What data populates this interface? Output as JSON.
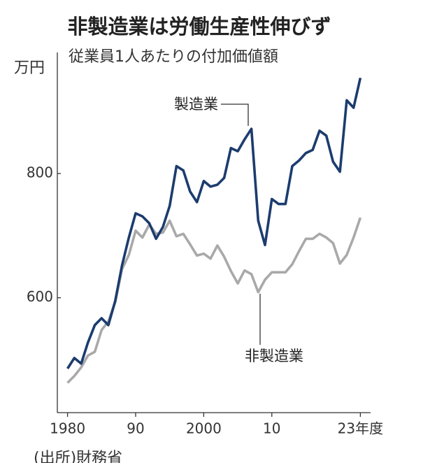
{
  "chart_data": {
    "type": "line",
    "title": "非製造業は労働生産性伸びず",
    "subtitle": "従業員1人あたりの付加価値額",
    "y_label": "万円",
    "source": "(出所)財務省",
    "x": [
      1980,
      1981,
      1982,
      1983,
      1984,
      1985,
      1986,
      1987,
      1988,
      1989,
      1990,
      1991,
      1992,
      1993,
      1994,
      1995,
      1996,
      1997,
      1998,
      1999,
      2000,
      2001,
      2002,
      2003,
      2004,
      2005,
      2006,
      2007,
      2008,
      2009,
      2010,
      2011,
      2012,
      2013,
      2014,
      2015,
      2016,
      2017,
      2018,
      2019,
      2020,
      2021,
      2022,
      2023
    ],
    "series": [
      {
        "name": "製造業",
        "color": "#1c3c6e",
        "values": [
          486,
          503,
          494,
          528,
          556,
          567,
          556,
          595,
          652,
          697,
          736,
          731,
          720,
          695,
          714,
          748,
          812,
          805,
          771,
          754,
          788,
          779,
          782,
          793,
          841,
          836,
          855,
          872,
          724,
          685,
          759,
          751,
          751,
          812,
          821,
          833,
          838,
          869,
          861,
          819,
          803,
          918,
          906,
          954
        ]
      },
      {
        "name": "非製造業",
        "color": "#a9a9a9",
        "values": [
          463,
          474,
          488,
          507,
          513,
          548,
          562,
          593,
          646,
          669,
          708,
          697,
          718,
          703,
          705,
          724,
          699,
          703,
          686,
          668,
          671,
          663,
          684,
          666,
          643,
          623,
          644,
          638,
          609,
          629,
          641,
          641,
          641,
          654,
          675,
          695,
          695,
          703,
          697,
          688,
          655,
          669,
          697,
          729
        ]
      }
    ],
    "xlim": [
      1978.5,
      2024.5
    ],
    "xticks": [
      1980,
      {
        "value": 1990,
        "label": "90"
      },
      2000,
      {
        "value": 2010,
        "label": "10"
      },
      {
        "value": 2023,
        "label": "23年度"
      }
    ],
    "ylim": [
      415,
      995
    ],
    "yticks": [
      600,
      800
    ],
    "grid": false
  }
}
